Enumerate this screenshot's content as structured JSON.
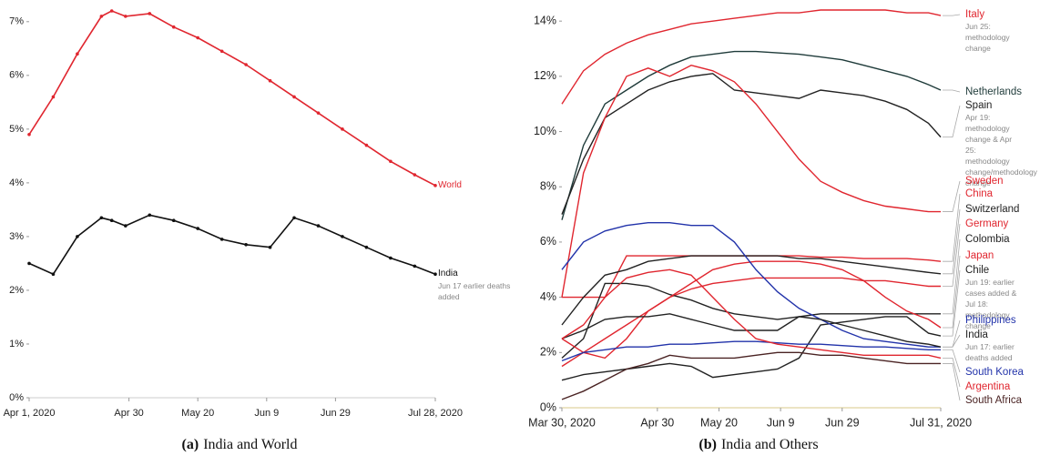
{
  "chart_data": [
    {
      "type": "line",
      "caption_label": "(a)",
      "caption": "India and World",
      "x": [
        "2020-04-01",
        "2020-04-08",
        "2020-04-15",
        "2020-04-22",
        "2020-04-25",
        "2020-04-29",
        "2020-05-06",
        "2020-05-13",
        "2020-05-20",
        "2020-05-27",
        "2020-06-03",
        "2020-06-10",
        "2020-06-17",
        "2020-06-24",
        "2020-07-01",
        "2020-07-08",
        "2020-07-15",
        "2020-07-22",
        "2020-07-28"
      ],
      "xlim": [
        "2020-04-01",
        "2020-07-28"
      ],
      "xticks": [
        {
          "value": "2020-04-01",
          "label": "Apr 1, 2020"
        },
        {
          "value": "2020-04-30",
          "label": "Apr 30"
        },
        {
          "value": "2020-05-20",
          "label": "May 20"
        },
        {
          "value": "2020-06-09",
          "label": "Jun 9"
        },
        {
          "value": "2020-06-29",
          "label": "Jun 29"
        },
        {
          "value": "2020-07-28",
          "label": "Jul 28, 2020"
        }
      ],
      "ylim": [
        0,
        7.2
      ],
      "yticks": [
        {
          "value": 0,
          "label": "0%"
        },
        {
          "value": 1,
          "label": "1%"
        },
        {
          "value": 2,
          "label": "2%"
        },
        {
          "value": 3,
          "label": "3%"
        },
        {
          "value": 4,
          "label": "4%"
        },
        {
          "value": 5,
          "label": "5%"
        },
        {
          "value": 6,
          "label": "6%"
        },
        {
          "value": 7,
          "label": "7%"
        }
      ],
      "markers": true,
      "series": [
        {
          "name": "World",
          "color": "#e0262f",
          "values": [
            4.9,
            5.6,
            6.4,
            7.1,
            7.2,
            7.1,
            7.15,
            6.9,
            6.7,
            6.45,
            6.2,
            5.9,
            5.6,
            5.3,
            5.0,
            4.7,
            4.4,
            4.15,
            3.95
          ]
        },
        {
          "name": "India",
          "color": "#111111",
          "values": [
            2.5,
            2.3,
            3.0,
            3.35,
            3.3,
            3.2,
            3.4,
            3.3,
            3.15,
            2.95,
            2.85,
            2.8,
            3.35,
            3.2,
            3.0,
            2.8,
            2.6,
            2.45,
            2.3
          ],
          "annotation": "Jun 17 earlier deaths added"
        }
      ]
    },
    {
      "type": "line",
      "caption_label": "(b)",
      "caption": "India and Others",
      "x": [
        "2020-03-30",
        "2020-04-06",
        "2020-04-13",
        "2020-04-20",
        "2020-04-27",
        "2020-05-04",
        "2020-05-11",
        "2020-05-18",
        "2020-05-25",
        "2020-06-01",
        "2020-06-08",
        "2020-06-15",
        "2020-06-22",
        "2020-06-29",
        "2020-07-06",
        "2020-07-13",
        "2020-07-20",
        "2020-07-27",
        "2020-07-31"
      ],
      "xlim": [
        "2020-03-30",
        "2020-07-31"
      ],
      "xticks": [
        {
          "value": "2020-03-30",
          "label": "Mar 30, 2020"
        },
        {
          "value": "2020-04-30",
          "label": "Apr 30"
        },
        {
          "value": "2020-05-20",
          "label": "May 20"
        },
        {
          "value": "2020-06-09",
          "label": "Jun 9"
        },
        {
          "value": "2020-06-29",
          "label": "Jun 29"
        },
        {
          "value": "2020-07-31",
          "label": "Jul 31, 2020"
        }
      ],
      "ylim": [
        0,
        14.5
      ],
      "yticks": [
        {
          "value": 0,
          "label": "0%"
        },
        {
          "value": 2,
          "label": "2%"
        },
        {
          "value": 4,
          "label": "4%"
        },
        {
          "value": 6,
          "label": "6%"
        },
        {
          "value": 8,
          "label": "8%"
        },
        {
          "value": 10,
          "label": "10%"
        },
        {
          "value": 12,
          "label": "12%"
        },
        {
          "value": 14,
          "label": "14%"
        }
      ],
      "markers": false,
      "series": [
        {
          "name": "Italy",
          "color": "#e0262f",
          "values": [
            11,
            12.2,
            12.8,
            13.2,
            13.5,
            13.7,
            13.9,
            14.0,
            14.1,
            14.2,
            14.3,
            14.3,
            14.4,
            14.4,
            14.4,
            14.4,
            14.3,
            14.3,
            14.2
          ],
          "annotation": "Jun 25: methodology change"
        },
        {
          "name": "Netherlands",
          "color": "#1f3b3a",
          "values": [
            6.8,
            9.5,
            11.0,
            11.5,
            12.0,
            12.4,
            12.7,
            12.8,
            12.9,
            12.9,
            12.85,
            12.8,
            12.7,
            12.6,
            12.4,
            12.2,
            12.0,
            11.7,
            11.5
          ]
        },
        {
          "name": "Spain",
          "color": "#222222",
          "values": [
            7.0,
            9.0,
            10.5,
            11.0,
            11.5,
            11.8,
            12.0,
            12.1,
            11.5,
            11.4,
            11.3,
            11.2,
            11.5,
            11.4,
            11.3,
            11.1,
            10.8,
            10.3,
            9.8
          ],
          "annotation": "Apr 19: methodology change & Apr 25: methodology change/methodology change"
        },
        {
          "name": "Sweden",
          "color": "#e0262f",
          "values": [
            4.0,
            8.5,
            10.5,
            12.0,
            12.3,
            12.0,
            12.4,
            12.2,
            11.8,
            11.0,
            10.0,
            9.0,
            8.2,
            7.8,
            7.5,
            7.3,
            7.2,
            7.1,
            7.1
          ]
        },
        {
          "name": "China",
          "color": "#e0262f",
          "values": [
            4.0,
            4.0,
            4.0,
            5.5,
            5.5,
            5.5,
            5.5,
            5.5,
            5.5,
            5.5,
            5.5,
            5.5,
            5.45,
            5.45,
            5.4,
            5.4,
            5.4,
            5.35,
            5.3
          ]
        },
        {
          "name": "Switzerland",
          "color": "#222222",
          "values": [
            3.0,
            4.0,
            4.8,
            5.0,
            5.3,
            5.4,
            5.5,
            5.5,
            5.5,
            5.5,
            5.5,
            5.4,
            5.4,
            5.3,
            5.2,
            5.1,
            5.0,
            4.9,
            4.85
          ]
        },
        {
          "name": "Germany",
          "color": "#e0262f",
          "values": [
            1.5,
            2.0,
            2.5,
            3.0,
            3.5,
            4.0,
            4.3,
            4.5,
            4.6,
            4.7,
            4.7,
            4.7,
            4.7,
            4.7,
            4.6,
            4.6,
            4.5,
            4.4,
            4.4
          ]
        },
        {
          "name": "Colombia",
          "color": "#222222",
          "values": [
            1.8,
            2.5,
            4.5,
            4.5,
            4.4,
            4.1,
            3.9,
            3.6,
            3.4,
            3.3,
            3.2,
            3.3,
            3.4,
            3.4,
            3.4,
            3.4,
            3.4,
            3.4,
            3.4
          ]
        },
        {
          "name": "Japan",
          "color": "#e0262f",
          "values": [
            2.5,
            2.0,
            1.8,
            2.5,
            3.5,
            4.0,
            4.5,
            5.0,
            5.2,
            5.3,
            5.3,
            5.3,
            5.2,
            5.0,
            4.6,
            4.0,
            3.5,
            3.2,
            2.9
          ]
        },
        {
          "name": "Chile",
          "color": "#222222",
          "values": [
            1.0,
            1.2,
            1.3,
            1.4,
            1.5,
            1.6,
            1.5,
            1.1,
            1.2,
            1.3,
            1.4,
            1.8,
            3.0,
            3.1,
            3.2,
            3.3,
            3.3,
            2.7,
            2.6
          ],
          "annotation": "Jun 19: earlier cases added & Jul 18: methodology change"
        },
        {
          "name": "Philippines",
          "color": "#2233aa",
          "values": [
            5.0,
            6.0,
            6.4,
            6.6,
            6.7,
            6.7,
            6.6,
            6.6,
            6.0,
            5.0,
            4.2,
            3.6,
            3.2,
            2.8,
            2.5,
            2.4,
            2.3,
            2.2,
            2.2
          ]
        },
        {
          "name": "India",
          "color": "#222222",
          "values": [
            2.5,
            2.8,
            3.2,
            3.3,
            3.3,
            3.4,
            3.2,
            3.0,
            2.8,
            2.8,
            2.8,
            3.3,
            3.2,
            3.0,
            2.8,
            2.6,
            2.4,
            2.3,
            2.2
          ],
          "annotation": "Jun 17: earlier deaths added"
        },
        {
          "name": "South Korea",
          "color": "#2233aa",
          "values": [
            1.7,
            2.0,
            2.1,
            2.2,
            2.2,
            2.3,
            2.3,
            2.35,
            2.4,
            2.4,
            2.35,
            2.3,
            2.3,
            2.25,
            2.2,
            2.2,
            2.15,
            2.1,
            2.1
          ]
        },
        {
          "name": "Argentina",
          "color": "#e0262f",
          "values": [
            2.5,
            3.0,
            4.0,
            4.7,
            4.9,
            5.0,
            4.8,
            4.0,
            3.2,
            2.5,
            2.3,
            2.2,
            2.1,
            2.0,
            1.9,
            1.9,
            1.9,
            1.9,
            1.8
          ]
        },
        {
          "name": "South Africa",
          "color": "#4a2323",
          "values": [
            0.3,
            0.6,
            1.0,
            1.4,
            1.6,
            1.9,
            1.8,
            1.8,
            1.8,
            1.9,
            2.0,
            2.0,
            1.9,
            1.9,
            1.8,
            1.7,
            1.6,
            1.6,
            1.6
          ]
        }
      ]
    }
  ]
}
